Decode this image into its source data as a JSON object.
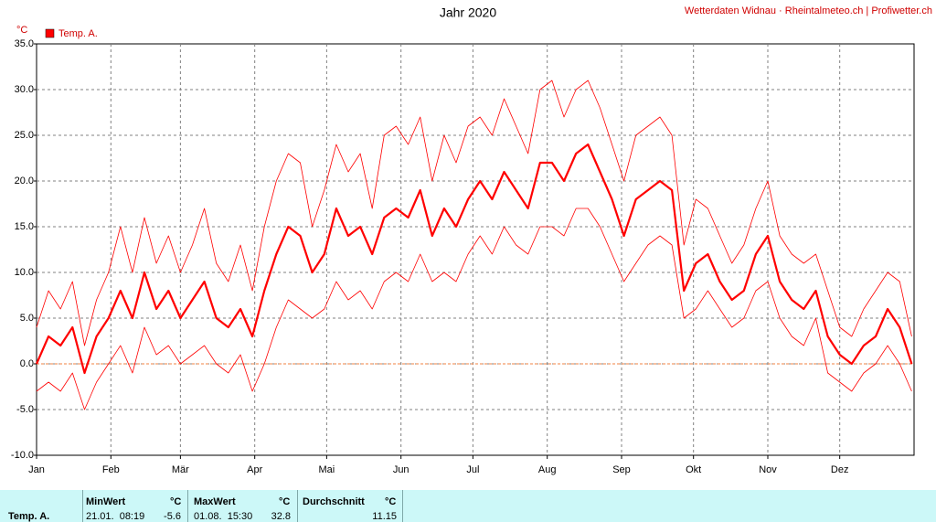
{
  "chart_data": {
    "type": "line",
    "title": "Jahr 2020",
    "source": "Wetterdaten Widnau · Rheintalmeteo.ch | Profiwetter.ch",
    "y_unit": "°C",
    "x": [
      1,
      6,
      11,
      16,
      21,
      26,
      31,
      36,
      41,
      46,
      51,
      56,
      61,
      66,
      71,
      76,
      81,
      86,
      91,
      96,
      101,
      106,
      111,
      116,
      121,
      126,
      131,
      136,
      141,
      146,
      151,
      156,
      161,
      166,
      171,
      176,
      181,
      186,
      191,
      196,
      201,
      206,
      211,
      216,
      221,
      226,
      231,
      236,
      241,
      246,
      251,
      256,
      261,
      266,
      271,
      276,
      281,
      286,
      291,
      296,
      301,
      306,
      311,
      316,
      321,
      326,
      331,
      336,
      341,
      346,
      351,
      356,
      361,
      366
    ],
    "xlim": [
      1,
      367
    ],
    "xticks": [
      {
        "value": 1,
        "label": "Jan"
      },
      {
        "value": 32,
        "label": "Feb"
      },
      {
        "value": 61,
        "label": "Mär"
      },
      {
        "value": 92,
        "label": "Apr"
      },
      {
        "value": 122,
        "label": "Mai"
      },
      {
        "value": 153,
        "label": "Jun"
      },
      {
        "value": 183,
        "label": "Jul"
      },
      {
        "value": 214,
        "label": "Aug"
      },
      {
        "value": 245,
        "label": "Sep"
      },
      {
        "value": 275,
        "label": "Okt"
      },
      {
        "value": 306,
        "label": "Nov"
      },
      {
        "value": 336,
        "label": "Dez"
      }
    ],
    "ylim": [
      -10,
      35
    ],
    "yticks": [
      {
        "value": -10,
        "label": "-10.0"
      },
      {
        "value": -5,
        "label": "-5.0"
      },
      {
        "value": 0,
        "label": "0.0"
      },
      {
        "value": 5,
        "label": "5.0"
      },
      {
        "value": 10,
        "label": "10.0"
      },
      {
        "value": 15,
        "label": "15.0"
      },
      {
        "value": 20,
        "label": "20.0"
      },
      {
        "value": 25,
        "label": "25.0"
      },
      {
        "value": 30,
        "label": "30.0"
      },
      {
        "value": 35,
        "label": "35.0"
      }
    ],
    "grid": true,
    "zero_line_color": "#f08040",
    "series": [
      {
        "name": "Temp. A.",
        "color": "#ff0000",
        "line_width": 2.2,
        "values": [
          0,
          3,
          2,
          4,
          -1,
          3,
          5,
          8,
          5,
          10,
          6,
          8,
          5,
          7,
          9,
          5,
          4,
          6,
          3,
          8,
          12,
          15,
          14,
          10,
          12,
          17,
          14,
          15,
          12,
          16,
          17,
          16,
          19,
          14,
          17,
          15,
          18,
          20,
          18,
          21,
          19,
          17,
          22,
          22,
          20,
          23,
          24,
          21,
          18,
          14,
          18,
          19,
          20,
          19,
          8,
          11,
          12,
          9,
          7,
          8,
          12,
          14,
          9,
          7,
          6,
          8,
          3,
          1,
          0,
          2,
          3,
          6,
          4,
          0
        ]
      },
      {
        "color": "#ff0000",
        "line_width": 0.8,
        "values": [
          4,
          8,
          6,
          9,
          2,
          7,
          10,
          15,
          10,
          16,
          11,
          14,
          10,
          13,
          17,
          11,
          9,
          13,
          8,
          15,
          20,
          23,
          22,
          15,
          19,
          24,
          21,
          23,
          17,
          25,
          26,
          24,
          27,
          20,
          25,
          22,
          26,
          27,
          25,
          29,
          26,
          23,
          30,
          31,
          27,
          30,
          31,
          28,
          24,
          20,
          25,
          26,
          27,
          25,
          13,
          18,
          17,
          14,
          11,
          13,
          17,
          20,
          14,
          12,
          11,
          12,
          8,
          4,
          3,
          6,
          8,
          10,
          9,
          3
        ]
      },
      {
        "color": "#ff0000",
        "line_width": 0.8,
        "values": [
          -3,
          -2,
          -3,
          -1,
          -5,
          -2,
          0,
          2,
          -1,
          4,
          1,
          2,
          0,
          1,
          2,
          0,
          -1,
          1,
          -3,
          0,
          4,
          7,
          6,
          5,
          6,
          9,
          7,
          8,
          6,
          9,
          10,
          9,
          12,
          9,
          10,
          9,
          12,
          14,
          12,
          15,
          13,
          12,
          15,
          15,
          14,
          17,
          17,
          15,
          12,
          9,
          11,
          13,
          14,
          13,
          5,
          6,
          8,
          6,
          4,
          5,
          8,
          9,
          5,
          3,
          2,
          5,
          -1,
          -2,
          -3,
          -1,
          0,
          2,
          0,
          -3
        ]
      }
    ]
  },
  "table": {
    "columns": [
      "MinWert",
      "°C",
      "MaxWert",
      "°C",
      "Durchschnitt",
      "°C"
    ],
    "rows": [
      [
        "Temp. A.",
        "21.01.  08:19",
        "-5.6",
        "01.08.  15:30",
        "32.8",
        "11.15"
      ]
    ]
  }
}
